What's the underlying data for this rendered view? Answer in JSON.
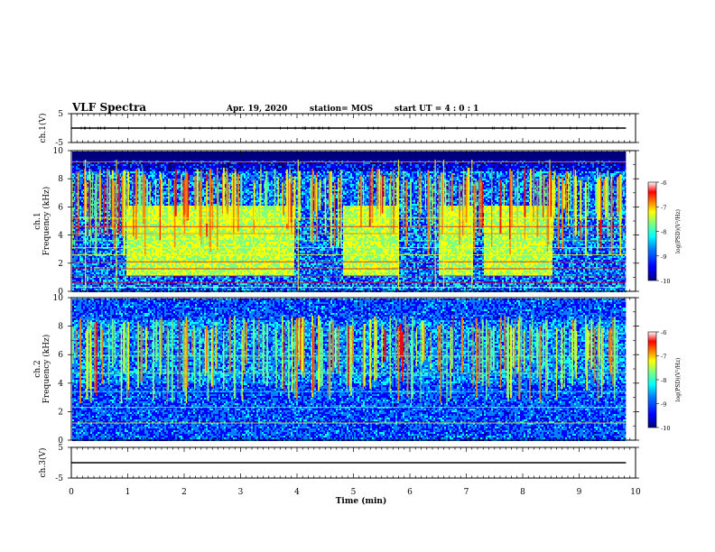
{
  "header": {
    "title": "VLF Spectra",
    "date": "Apr. 19, 2020",
    "station": "station= MOS",
    "start": "start UT =  4 : 0  : 1"
  },
  "chart_data": [
    {
      "type": "line",
      "name": "ch1-voltage",
      "ylabel": "ch.1(V)",
      "ylim": [
        -5,
        5
      ],
      "yticks": [
        "5",
        "-5"
      ],
      "x": [
        0,
        9.83
      ],
      "y": [
        0,
        0
      ]
    },
    {
      "type": "heatmap",
      "name": "ch1-spectrogram",
      "ylabel": "ch.1\nFrequency (kHz)",
      "ylim": [
        0,
        10
      ],
      "yticks": [
        "0",
        "2",
        "4",
        "6",
        "8",
        "10"
      ],
      "xlim": [
        0,
        10
      ],
      "data_end_min": 9.83,
      "band_segments_min": [
        [
          0.95,
          3.95
        ],
        [
          4.8,
          5.8
        ],
        [
          6.5,
          7.1
        ],
        [
          7.3,
          8.5
        ]
      ],
      "colorbar": {
        "label": "log(PSD)(V²/Hz)",
        "range": [
          -10,
          -6
        ],
        "ticks": [
          "-6",
          "-7",
          "-8",
          "-9",
          "-10"
        ]
      }
    },
    {
      "type": "heatmap",
      "name": "ch2-spectrogram",
      "ylabel": "ch.2\nFrequency (kHz)",
      "ylim": [
        0,
        10
      ],
      "yticks": [
        "0",
        "2",
        "4",
        "6",
        "8",
        "10"
      ],
      "xlim": [
        0,
        10
      ],
      "data_end_min": 9.83,
      "colorbar": {
        "label": "log(PSD)(V²/Hz)",
        "range": [
          -10,
          -6
        ],
        "ticks": [
          "-6",
          "-7",
          "-8",
          "-9",
          "-10"
        ]
      }
    },
    {
      "type": "line",
      "name": "ch3-voltage",
      "ylabel": "ch.3(V)",
      "ylim": [
        -5,
        5
      ],
      "yticks": [
        "5",
        "-5"
      ],
      "x": [
        0,
        9.83
      ],
      "y": [
        0,
        0
      ]
    }
  ],
  "xaxis": {
    "label": "Time (min)",
    "range": [
      0,
      10
    ],
    "ticks": [
      "0",
      "1",
      "2",
      "3",
      "4",
      "5",
      "6",
      "7",
      "8",
      "9",
      "10"
    ]
  },
  "colormap": [
    "#00007f",
    "#0000ff",
    "#007fff",
    "#00ffff",
    "#7fff7f",
    "#ffff00",
    "#ff7f00",
    "#ff0000",
    "#ffffff"
  ]
}
